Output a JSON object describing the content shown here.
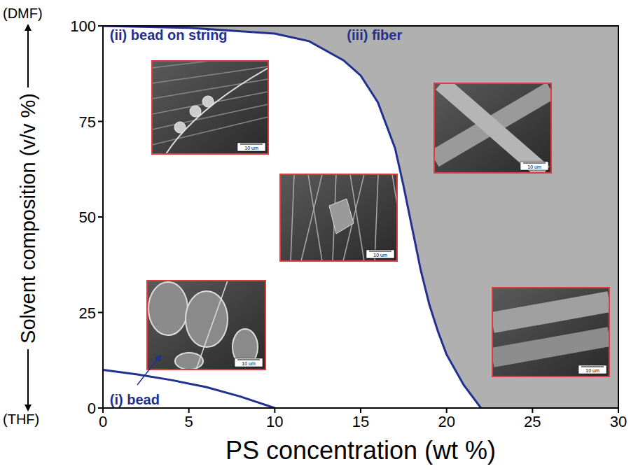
{
  "chart_data": {
    "type": "line",
    "xlabel": "PS concentration (wt %)",
    "ylabel": "Solvent composition (v/v %)",
    "y_top_label": "(DMF)",
    "y_bottom_label": "(THF)",
    "xlim": [
      0,
      30
    ],
    "xticks": [
      0,
      5,
      10,
      15,
      20,
      25,
      30
    ],
    "ylim": [
      0,
      100
    ],
    "yticks": [
      0,
      25,
      50,
      75,
      100
    ],
    "grid": false,
    "series": [
      {
        "color": "#22318f",
        "x": [
          0,
          2,
          4,
          6,
          8,
          10
        ],
        "values": [
          10,
          8.8,
          7.3,
          5.5,
          3,
          0
        ]
      },
      {
        "color": "#22318f",
        "x": [
          0,
          5,
          10,
          12,
          14,
          15,
          16,
          17,
          17.5,
          18,
          18.5,
          19,
          19.5,
          20,
          21,
          22
        ],
        "values": [
          100,
          99.5,
          98,
          96,
          91,
          87,
          80,
          68,
          58,
          47,
          36,
          27,
          20,
          14,
          6,
          0
        ]
      }
    ],
    "annotations": [
      {
        "text": "(i) bead",
        "x": 0.4,
        "y": 0.9
      },
      {
        "text": "(ii) bead on string",
        "x": 0.4,
        "y": 96.3
      },
      {
        "text": "(iii) fiber",
        "x": 14.2,
        "y": 96.3
      }
    ],
    "insets": [
      {
        "scale_bar": "10 um"
      },
      {
        "scale_bar": "10 um"
      },
      {
        "scale_bar": "10 um"
      },
      {
        "scale_bar": "10 um"
      },
      {
        "scale_bar": "10 um"
      }
    ]
  }
}
